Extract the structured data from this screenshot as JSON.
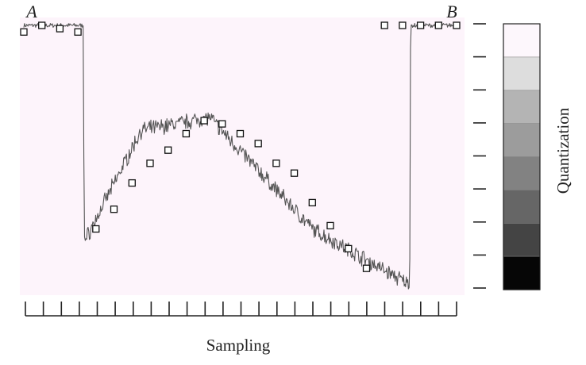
{
  "labels": {
    "point_a": "A",
    "point_b": "B",
    "x_axis": "Sampling",
    "y_axis": "Quantization"
  },
  "colors": {
    "plot_background": "#fdf4fb",
    "signal": "#555555",
    "marker_fill": "#ffffff",
    "marker_stroke": "#111111",
    "axis": "#222222"
  },
  "quantization_scale": {
    "levels": 8,
    "shades": [
      "#fdf7fc",
      "#dddddd",
      "#b4b4b4",
      "#9c9c9c",
      "#828282",
      "#666666",
      "#444444",
      "#060606"
    ]
  },
  "chart_data": {
    "type": "line",
    "xlabel": "Sampling",
    "ylabel": "Quantization",
    "x_ticks": 24,
    "y_ticks": 9,
    "ylim": [
      0,
      8
    ],
    "signal": {
      "x": [
        0,
        3.3,
        3.35,
        6.5,
        10.3,
        16,
        21.4,
        21.45,
        24
      ],
      "y": [
        8,
        8,
        1.4,
        4.8,
        5.2,
        1.8,
        0.1,
        8,
        8
      ]
    },
    "samples": {
      "x": [
        0,
        1,
        2,
        3,
        4,
        5,
        6,
        7,
        8,
        9,
        10,
        11,
        12,
        13,
        14,
        15,
        16,
        17,
        18,
        19,
        20,
        21,
        22,
        23,
        24
      ],
      "y": [
        7.8,
        8,
        7.9,
        7.8,
        1.8,
        2.4,
        3.2,
        3.8,
        4.2,
        4.7,
        5.1,
        5,
        4.7,
        4.4,
        3.8,
        3.5,
        2.6,
        1.9,
        1.2,
        0.6,
        8,
        8,
        8,
        8,
        8
      ]
    }
  }
}
